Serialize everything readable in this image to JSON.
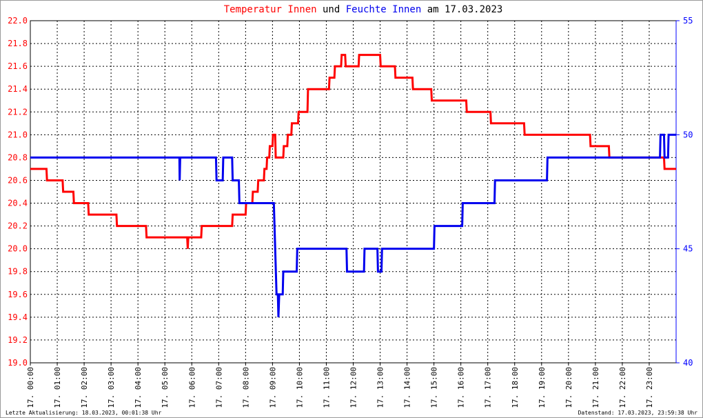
{
  "chart_data": {
    "type": "line",
    "title_middle": "und",
    "title_suffix": "am 17.03.2023",
    "footer_left": "Letzte Aktualisierung: 18.03.2023, 00:01:38 Uhr",
    "footer_right": "Datenstand: 17.03.2023, 23:59:38 Uhr",
    "grid": true,
    "xlim": [
      0,
      24
    ],
    "xticks": [
      {
        "value": 0,
        "label": "17. 00:00"
      },
      {
        "value": 1,
        "label": "17. 01:00"
      },
      {
        "value": 2,
        "label": "17. 02:00"
      },
      {
        "value": 3,
        "label": "17. 03:00"
      },
      {
        "value": 4,
        "label": "17. 04:00"
      },
      {
        "value": 5,
        "label": "17. 05:00"
      },
      {
        "value": 6,
        "label": "17. 06:00"
      },
      {
        "value": 7,
        "label": "17. 07:00"
      },
      {
        "value": 8,
        "label": "17. 08:00"
      },
      {
        "value": 9,
        "label": "17. 09:00"
      },
      {
        "value": 10,
        "label": "17. 10:00"
      },
      {
        "value": 11,
        "label": "17. 11:00"
      },
      {
        "value": 12,
        "label": "17. 12:00"
      },
      {
        "value": 13,
        "label": "17. 13:00"
      },
      {
        "value": 14,
        "label": "17. 14:00"
      },
      {
        "value": 15,
        "label": "17. 15:00"
      },
      {
        "value": 16,
        "label": "17. 16:00"
      },
      {
        "value": 17,
        "label": "17. 17:00"
      },
      {
        "value": 18,
        "label": "17. 18:00"
      },
      {
        "value": 19,
        "label": "17. 19:00"
      },
      {
        "value": 20,
        "label": "17. 20:00"
      },
      {
        "value": 21,
        "label": "17. 21:00"
      },
      {
        "value": 22,
        "label": "17. 22:00"
      },
      {
        "value": 23,
        "label": "17. 23:00"
      }
    ],
    "ylim": [
      19,
      22
    ],
    "yticks": [
      {
        "value": 19,
        "label": "19.0"
      },
      19.2,
      19.4,
      19.6,
      19.8,
      {
        "value": 20,
        "label": "20.0"
      },
      20.2,
      20.4,
      20.6,
      20.8,
      {
        "value": 21,
        "label": "21.0"
      },
      21.2,
      21.4,
      21.6,
      21.8,
      {
        "value": 22,
        "label": "22.0"
      }
    ],
    "y_color": "#ff0000",
    "y2lim": [
      40,
      55
    ],
    "y2ticks": [
      40,
      45,
      50,
      55
    ],
    "y2_color": "#0000ff",
    "series": [
      {
        "name": "Temperatur Innen",
        "color": "#ff0000",
        "x": [
          0,
          0.6,
          0.62,
          1.2,
          1.22,
          1.6,
          1.62,
          2.15,
          2.17,
          3.2,
          3.22,
          4.3,
          4.32,
          5.83,
          5.85,
          5.87,
          6.35,
          6.37,
          7.5,
          7.52,
          8.0,
          8.02,
          8.25,
          8.27,
          8.45,
          8.47,
          8.68,
          8.7,
          8.78,
          8.8,
          8.88,
          8.9,
          9.0,
          9.02,
          9.1,
          9.12,
          9.4,
          9.42,
          9.55,
          9.57,
          9.7,
          9.72,
          9.95,
          9.97,
          10.3,
          10.32,
          11.1,
          11.12,
          11.3,
          11.32,
          11.55,
          11.57,
          11.7,
          11.72,
          12.2,
          12.22,
          13.0,
          13.02,
          13.55,
          13.57,
          14.2,
          14.22,
          14.9,
          14.92,
          16.2,
          16.22,
          17.1,
          17.12,
          18.35,
          18.37,
          20.8,
          20.82,
          21.5,
          21.52,
          23.55,
          23.57,
          24
        ],
        "values": [
          20.7,
          20.7,
          20.6,
          20.6,
          20.5,
          20.5,
          20.4,
          20.4,
          20.3,
          20.3,
          20.2,
          20.2,
          20.1,
          20.1,
          20.0,
          20.1,
          20.1,
          20.2,
          20.2,
          20.3,
          20.3,
          20.4,
          20.4,
          20.5,
          20.5,
          20.6,
          20.6,
          20.7,
          20.7,
          20.8,
          20.8,
          20.9,
          20.9,
          21.0,
          21.0,
          20.8,
          20.8,
          20.9,
          20.9,
          21.0,
          21.0,
          21.1,
          21.1,
          21.2,
          21.2,
          21.4,
          21.4,
          21.5,
          21.5,
          21.6,
          21.6,
          21.7,
          21.7,
          21.6,
          21.6,
          21.7,
          21.7,
          21.6,
          21.6,
          21.5,
          21.5,
          21.4,
          21.4,
          21.3,
          21.3,
          21.2,
          21.2,
          21.1,
          21.1,
          21.0,
          21.0,
          20.9,
          20.9,
          20.8,
          20.8,
          20.7,
          20.7
        ]
      },
      {
        "name": "Feuchte Innen",
        "color": "#0000ee",
        "axis": "y2",
        "x": [
          0,
          5.54,
          5.55,
          5.57,
          6.9,
          6.92,
          7.15,
          7.17,
          7.5,
          7.52,
          7.75,
          7.77,
          9.05,
          9.15,
          9.2,
          9.22,
          9.25,
          9.38,
          9.4,
          9.9,
          9.92,
          11.75,
          11.77,
          12.4,
          12.42,
          12.9,
          12.92,
          13.05,
          13.07,
          15.0,
          15.02,
          16.05,
          16.07,
          17.25,
          17.27,
          19.2,
          19.22,
          23.4,
          23.42,
          23.55,
          23.57,
          23.7,
          23.72,
          24
        ],
        "values": [
          49,
          49,
          48,
          49,
          49,
          48,
          48,
          49,
          49,
          48,
          48,
          47,
          47,
          43,
          43,
          42,
          43,
          43,
          44,
          44,
          45,
          45,
          44,
          44,
          45,
          45,
          44,
          44,
          45,
          45,
          46,
          46,
          47,
          47,
          48,
          48,
          49,
          49,
          50,
          50,
          49,
          49,
          50,
          50
        ]
      }
    ]
  }
}
